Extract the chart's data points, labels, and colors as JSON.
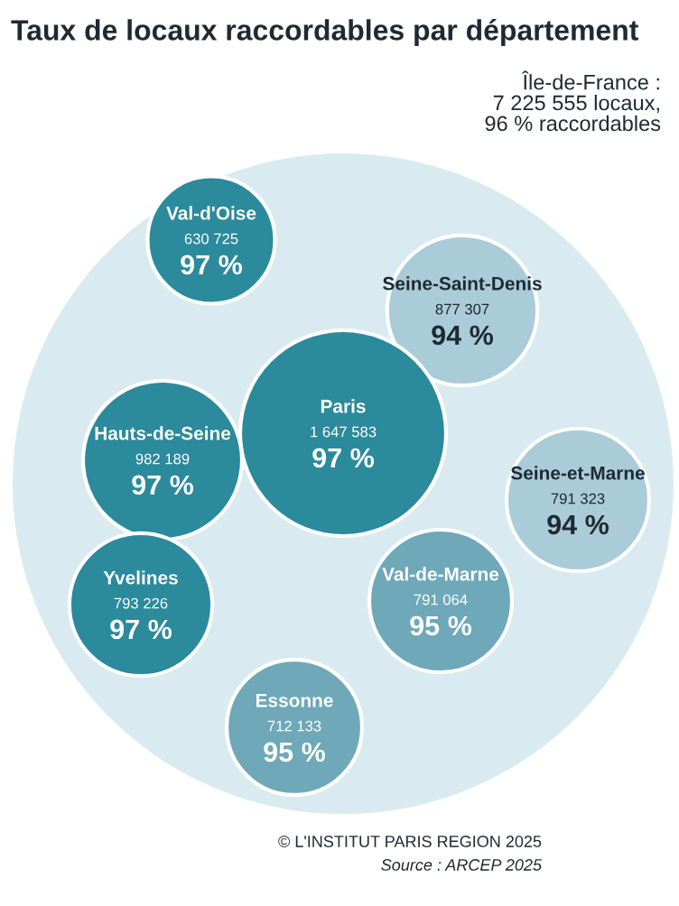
{
  "chart_data": {
    "type": "other",
    "title": "Taux de locaux raccordables par département",
    "categories": [
      "Val-d'Oise",
      "Seine-Saint-Denis",
      "Paris",
      "Hauts-de-Seine",
      "Seine-et-Marne",
      "Yvelines",
      "Val-de-Marne",
      "Essonne"
    ],
    "series": [
      {
        "values": [
          630725,
          877307,
          1647583,
          982189,
          791323,
          793226,
          791064,
          712133
        ],
        "value_labels": [
          "630 725",
          "877 307",
          "1 647 583",
          "982 189",
          "791 323",
          "793 226",
          "791 064",
          "712 133"
        ],
        "colors": [
          "#2b8a9b",
          "#a9ccd8",
          "#2b8a9b",
          "#2b8a9b",
          "#a9ccd8",
          "#2b8a9b",
          "#6ea8b9",
          "#6ea8b9"
        ]
      },
      {
        "values": [
          97,
          94,
          97,
          97,
          94,
          97,
          95,
          95
        ],
        "value_labels": [
          "97 %",
          "94 %",
          "97 %",
          "97 %",
          "94 %",
          "97 %",
          "95 %",
          "95 %"
        ]
      }
    ],
    "annotations": [
      "Île-de-France :\n7 225 555 locaux,\n96 % raccordables",
      "© L'INSTITUT PARIS REGION 2025",
      "Source : ARCEP 2025"
    ]
  }
}
